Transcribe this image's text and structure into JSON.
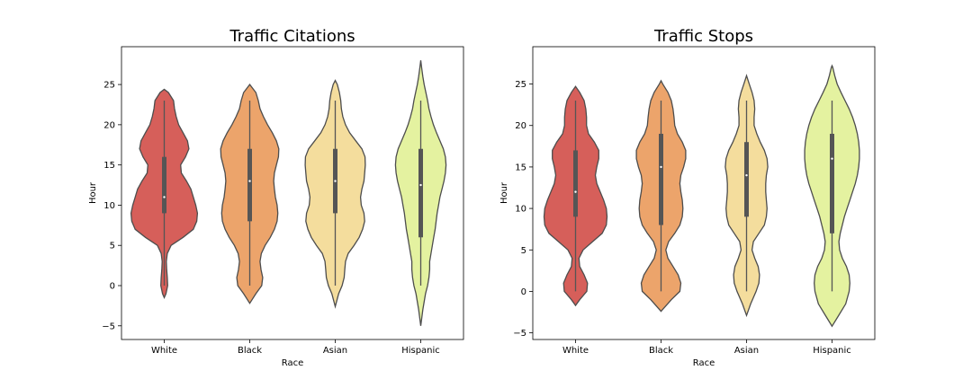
{
  "colors": {
    "White": "#d65f5a",
    "Black": "#eca46b",
    "Asian": "#f4dd9d",
    "Hispanic": "#e4f2a0",
    "outline": "#4d4d4d",
    "box": "#555555"
  },
  "chart_data": [
    {
      "type": "violin",
      "title": "Traffic Citations",
      "xlabel": "Race",
      "ylabel": "Hour",
      "ylim": [
        -6.7,
        29.7
      ],
      "yticks": [
        -5,
        0,
        5,
        10,
        15,
        20,
        25
      ],
      "ytick_labels": [
        "−5",
        "0",
        "5",
        "10",
        "15",
        "20",
        "25"
      ],
      "categories": [
        "White",
        "Black",
        "Asian",
        "Hispanic"
      ],
      "violins": [
        {
          "category": "White",
          "min": -1.5,
          "max": 24.4,
          "whisker_low": 0,
          "whisker_high": 23,
          "q1": 9,
          "median": 11,
          "q3": 16,
          "density": [
            [
              -1.5,
              0
            ],
            [
              -1,
              0.05
            ],
            [
              0,
              0.1
            ],
            [
              1,
              0.09
            ],
            [
              2,
              0.07
            ],
            [
              3,
              0.06
            ],
            [
              4,
              0.09
            ],
            [
              5,
              0.2
            ],
            [
              6,
              0.55
            ],
            [
              7,
              0.85
            ],
            [
              8,
              0.95
            ],
            [
              9,
              0.97
            ],
            [
              10,
              0.92
            ],
            [
              11,
              0.85
            ],
            [
              12,
              0.78
            ],
            [
              13,
              0.65
            ],
            [
              14,
              0.5
            ],
            [
              15,
              0.48
            ],
            [
              16,
              0.62
            ],
            [
              17,
              0.72
            ],
            [
              18,
              0.68
            ],
            [
              19,
              0.55
            ],
            [
              20,
              0.42
            ],
            [
              21,
              0.35
            ],
            [
              22,
              0.3
            ],
            [
              23,
              0.27
            ],
            [
              24,
              0.12
            ],
            [
              24.4,
              0
            ]
          ]
        },
        {
          "category": "Black",
          "min": -2.2,
          "max": 25,
          "whisker_low": 0,
          "whisker_high": 23,
          "q1": 8,
          "median": 13,
          "q3": 17,
          "density": [
            [
              -2.2,
              0
            ],
            [
              -1,
              0.18
            ],
            [
              0,
              0.35
            ],
            [
              1,
              0.38
            ],
            [
              2,
              0.33
            ],
            [
              3,
              0.3
            ],
            [
              4,
              0.34
            ],
            [
              5,
              0.45
            ],
            [
              6,
              0.6
            ],
            [
              7,
              0.72
            ],
            [
              8,
              0.8
            ],
            [
              9,
              0.82
            ],
            [
              10,
              0.8
            ],
            [
              11,
              0.75
            ],
            [
              12,
              0.72
            ],
            [
              13,
              0.7
            ],
            [
              14,
              0.72
            ],
            [
              15,
              0.78
            ],
            [
              16,
              0.84
            ],
            [
              17,
              0.85
            ],
            [
              18,
              0.78
            ],
            [
              19,
              0.66
            ],
            [
              20,
              0.52
            ],
            [
              21,
              0.4
            ],
            [
              22,
              0.3
            ],
            [
              23,
              0.25
            ],
            [
              24,
              0.18
            ],
            [
              25,
              0
            ]
          ]
        },
        {
          "category": "Asian",
          "min": -2.6,
          "max": 25.5,
          "whisker_low": 0,
          "whisker_high": 23,
          "q1": 9,
          "median": 13,
          "q3": 17,
          "density": [
            [
              -2.6,
              0
            ],
            [
              -1,
              0.1
            ],
            [
              0,
              0.2
            ],
            [
              1,
              0.26
            ],
            [
              2,
              0.28
            ],
            [
              3,
              0.3
            ],
            [
              4,
              0.38
            ],
            [
              5,
              0.55
            ],
            [
              6,
              0.7
            ],
            [
              7,
              0.8
            ],
            [
              8,
              0.86
            ],
            [
              9,
              0.84
            ],
            [
              10,
              0.76
            ],
            [
              11,
              0.74
            ],
            [
              12,
              0.78
            ],
            [
              13,
              0.84
            ],
            [
              14,
              0.86
            ],
            [
              15,
              0.88
            ],
            [
              16,
              0.87
            ],
            [
              17,
              0.78
            ],
            [
              18,
              0.6
            ],
            [
              19,
              0.42
            ],
            [
              20,
              0.3
            ],
            [
              21,
              0.22
            ],
            [
              22,
              0.18
            ],
            [
              23,
              0.16
            ],
            [
              24,
              0.12
            ],
            [
              25,
              0.06
            ],
            [
              25.5,
              0
            ]
          ]
        },
        {
          "category": "Hispanic",
          "min": -5,
          "max": 28,
          "whisker_low": 0,
          "whisker_high": 23,
          "q1": 6,
          "median": 12.5,
          "q3": 17,
          "density": [
            [
              -5,
              0
            ],
            [
              -3,
              0.06
            ],
            [
              -1,
              0.14
            ],
            [
              0,
              0.2
            ],
            [
              1,
              0.24
            ],
            [
              2,
              0.26
            ],
            [
              3,
              0.26
            ],
            [
              4,
              0.3
            ],
            [
              5,
              0.34
            ],
            [
              6,
              0.38
            ],
            [
              7,
              0.42
            ],
            [
              8,
              0.45
            ],
            [
              9,
              0.48
            ],
            [
              10,
              0.52
            ],
            [
              11,
              0.56
            ],
            [
              12,
              0.62
            ],
            [
              13,
              0.68
            ],
            [
              14,
              0.72
            ],
            [
              15,
              0.74
            ],
            [
              16,
              0.72
            ],
            [
              17,
              0.66
            ],
            [
              18,
              0.56
            ],
            [
              19,
              0.46
            ],
            [
              20,
              0.37
            ],
            [
              21,
              0.3
            ],
            [
              22,
              0.24
            ],
            [
              23,
              0.2
            ],
            [
              24,
              0.15
            ],
            [
              25,
              0.1
            ],
            [
              26,
              0.06
            ],
            [
              27,
              0.03
            ],
            [
              28,
              0
            ]
          ]
        }
      ]
    },
    {
      "type": "violin",
      "title": "Traffic Stops",
      "xlabel": "Race",
      "ylabel": "Hour",
      "ylim": [
        -5.8,
        29.5
      ],
      "yticks": [
        -5,
        0,
        5,
        10,
        15,
        20,
        25
      ],
      "ytick_labels": [
        "−5",
        "0",
        "5",
        "10",
        "15",
        "20",
        "25"
      ],
      "categories": [
        "White",
        "Black",
        "Asian",
        "Hispanic"
      ],
      "violins": [
        {
          "category": "White",
          "min": -1.7,
          "max": 24.7,
          "whisker_low": 0,
          "whisker_high": 23,
          "q1": 9,
          "median": 12,
          "q3": 17,
          "density": [
            [
              -1.7,
              0
            ],
            [
              -1,
              0.12
            ],
            [
              0,
              0.33
            ],
            [
              1,
              0.35
            ],
            [
              2,
              0.25
            ],
            [
              3,
              0.12
            ],
            [
              4,
              0.1
            ],
            [
              5,
              0.22
            ],
            [
              6,
              0.5
            ],
            [
              7,
              0.78
            ],
            [
              8,
              0.9
            ],
            [
              9,
              0.92
            ],
            [
              10,
              0.9
            ],
            [
              11,
              0.82
            ],
            [
              12,
              0.72
            ],
            [
              13,
              0.62
            ],
            [
              14,
              0.58
            ],
            [
              15,
              0.62
            ],
            [
              16,
              0.68
            ],
            [
              17,
              0.68
            ],
            [
              18,
              0.55
            ],
            [
              19,
              0.38
            ],
            [
              20,
              0.32
            ],
            [
              21,
              0.32
            ],
            [
              22,
              0.3
            ],
            [
              23,
              0.25
            ],
            [
              24,
              0.12
            ],
            [
              24.7,
              0
            ]
          ]
        },
        {
          "category": "Black",
          "min": -2.4,
          "max": 25.4,
          "whisker_low": 0,
          "whisker_high": 23,
          "q1": 8,
          "median": 15,
          "q3": 19,
          "density": [
            [
              -2.4,
              0
            ],
            [
              -1,
              0.3
            ],
            [
              0,
              0.55
            ],
            [
              1,
              0.58
            ],
            [
              2,
              0.5
            ],
            [
              3,
              0.35
            ],
            [
              4,
              0.2
            ],
            [
              5,
              0.14
            ],
            [
              6,
              0.22
            ],
            [
              7,
              0.4
            ],
            [
              8,
              0.55
            ],
            [
              9,
              0.62
            ],
            [
              10,
              0.64
            ],
            [
              11,
              0.62
            ],
            [
              12,
              0.58
            ],
            [
              13,
              0.55
            ],
            [
              14,
              0.58
            ],
            [
              15,
              0.66
            ],
            [
              16,
              0.72
            ],
            [
              17,
              0.72
            ],
            [
              18,
              0.62
            ],
            [
              19,
              0.48
            ],
            [
              20,
              0.4
            ],
            [
              21,
              0.38
            ],
            [
              22,
              0.35
            ],
            [
              23,
              0.3
            ],
            [
              24,
              0.2
            ],
            [
              25,
              0.05
            ],
            [
              25.4,
              0
            ]
          ]
        },
        {
          "category": "Asian",
          "min": -2.9,
          "max": 26,
          "whisker_low": 0,
          "whisker_high": 23,
          "q1": 9,
          "median": 14,
          "q3": 18,
          "density": [
            [
              -2.9,
              0
            ],
            [
              -1.5,
              0.12
            ],
            [
              0,
              0.28
            ],
            [
              1,
              0.36
            ],
            [
              2,
              0.38
            ],
            [
              3,
              0.34
            ],
            [
              4,
              0.24
            ],
            [
              5,
              0.16
            ],
            [
              6,
              0.2
            ],
            [
              7,
              0.36
            ],
            [
              8,
              0.52
            ],
            [
              9,
              0.58
            ],
            [
              10,
              0.6
            ],
            [
              11,
              0.58
            ],
            [
              12,
              0.56
            ],
            [
              13,
              0.56
            ],
            [
              14,
              0.58
            ],
            [
              15,
              0.62
            ],
            [
              16,
              0.6
            ],
            [
              17,
              0.52
            ],
            [
              18,
              0.4
            ],
            [
              19,
              0.3
            ],
            [
              20,
              0.22
            ],
            [
              21,
              0.22
            ],
            [
              22,
              0.24
            ],
            [
              23,
              0.22
            ],
            [
              24,
              0.16
            ],
            [
              25,
              0.08
            ],
            [
              26,
              0
            ]
          ]
        },
        {
          "category": "Hispanic",
          "min": -4.2,
          "max": 27.2,
          "whisker_low": 0,
          "whisker_high": 23,
          "q1": 7,
          "median": 16,
          "q3": 19,
          "density": [
            [
              -4.2,
              0
            ],
            [
              -3,
              0.18
            ],
            [
              -1.5,
              0.4
            ],
            [
              0,
              0.5
            ],
            [
              1,
              0.52
            ],
            [
              2,
              0.5
            ],
            [
              3,
              0.42
            ],
            [
              4,
              0.3
            ],
            [
              5,
              0.22
            ],
            [
              6,
              0.2
            ],
            [
              7,
              0.24
            ],
            [
              8,
              0.3
            ],
            [
              9,
              0.36
            ],
            [
              10,
              0.44
            ],
            [
              11,
              0.52
            ],
            [
              12,
              0.6
            ],
            [
              13,
              0.68
            ],
            [
              14,
              0.74
            ],
            [
              15,
              0.78
            ],
            [
              16,
              0.8
            ],
            [
              17,
              0.8
            ],
            [
              18,
              0.78
            ],
            [
              19,
              0.74
            ],
            [
              20,
              0.68
            ],
            [
              21,
              0.6
            ],
            [
              22,
              0.5
            ],
            [
              23,
              0.38
            ],
            [
              24,
              0.26
            ],
            [
              25,
              0.15
            ],
            [
              26,
              0.08
            ],
            [
              27,
              0.02
            ],
            [
              27.2,
              0
            ]
          ]
        }
      ]
    }
  ]
}
